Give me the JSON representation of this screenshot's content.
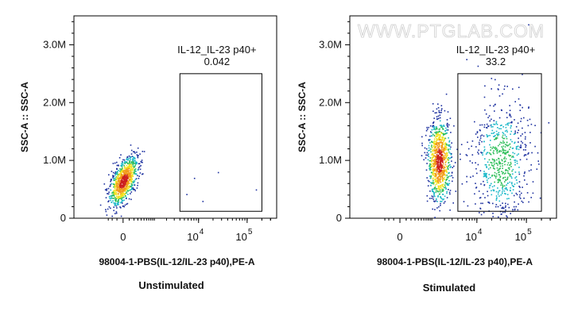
{
  "watermark": "WWW.PTGLAB.COM",
  "chart_data": [
    {
      "type": "scatter",
      "condition": "Unstimulated",
      "xlabel": "98004-1-PBS(IL-12/IL-23 p40),PE-A",
      "ylabel": "SSC-A :: SSC-A",
      "x_scale": "biexponential",
      "x_tick_labels": [
        {
          "base": "0",
          "exp": ""
        },
        {
          "base": "10",
          "exp": "4"
        },
        {
          "base": "10",
          "exp": "5"
        }
      ],
      "y_tick_labels": [
        "0",
        "1.0M",
        "2.0M",
        "3.0M"
      ],
      "ylim": [
        0,
        3500000
      ],
      "gate": {
        "name": "IL-12_IL-23 p40+",
        "percent": "0.042",
        "x_range": [
          4000,
          200000
        ],
        "y_range": [
          120000,
          2500000
        ]
      },
      "populations": [
        {
          "label": "main cluster",
          "x_center": 0,
          "y_center": 650000,
          "x_spread_decades": 0.25,
          "y_spread": 170000,
          "density": "high"
        }
      ]
    },
    {
      "type": "scatter",
      "condition": "Stimulated",
      "xlabel": "98004-1-PBS(IL-12/IL-23 p40),PE-A",
      "ylabel": "SSC-A :: SSC-A",
      "x_scale": "biexponential",
      "x_tick_labels": [
        {
          "base": "0",
          "exp": ""
        },
        {
          "base": "10",
          "exp": "4"
        },
        {
          "base": "10",
          "exp": "5"
        }
      ],
      "y_tick_labels": [
        "0",
        "1.0M",
        "2.0M",
        "3.0M"
      ],
      "ylim": [
        0,
        3500000
      ],
      "gate": {
        "name": "IL-12_IL-23 p40+",
        "percent": "33.2",
        "x_range": [
          4000,
          200000
        ],
        "y_range": [
          120000,
          2500000
        ]
      },
      "populations": [
        {
          "label": "negative cluster",
          "x_center": 1500,
          "y_center": 1000000,
          "x_spread_decades": 0.2,
          "y_spread": 350000,
          "density": "high"
        },
        {
          "label": "positive cloud",
          "x_center": 30000,
          "y_center": 1000000,
          "x_spread_decades": 0.5,
          "y_spread": 550000,
          "density": "medium"
        }
      ]
    }
  ]
}
